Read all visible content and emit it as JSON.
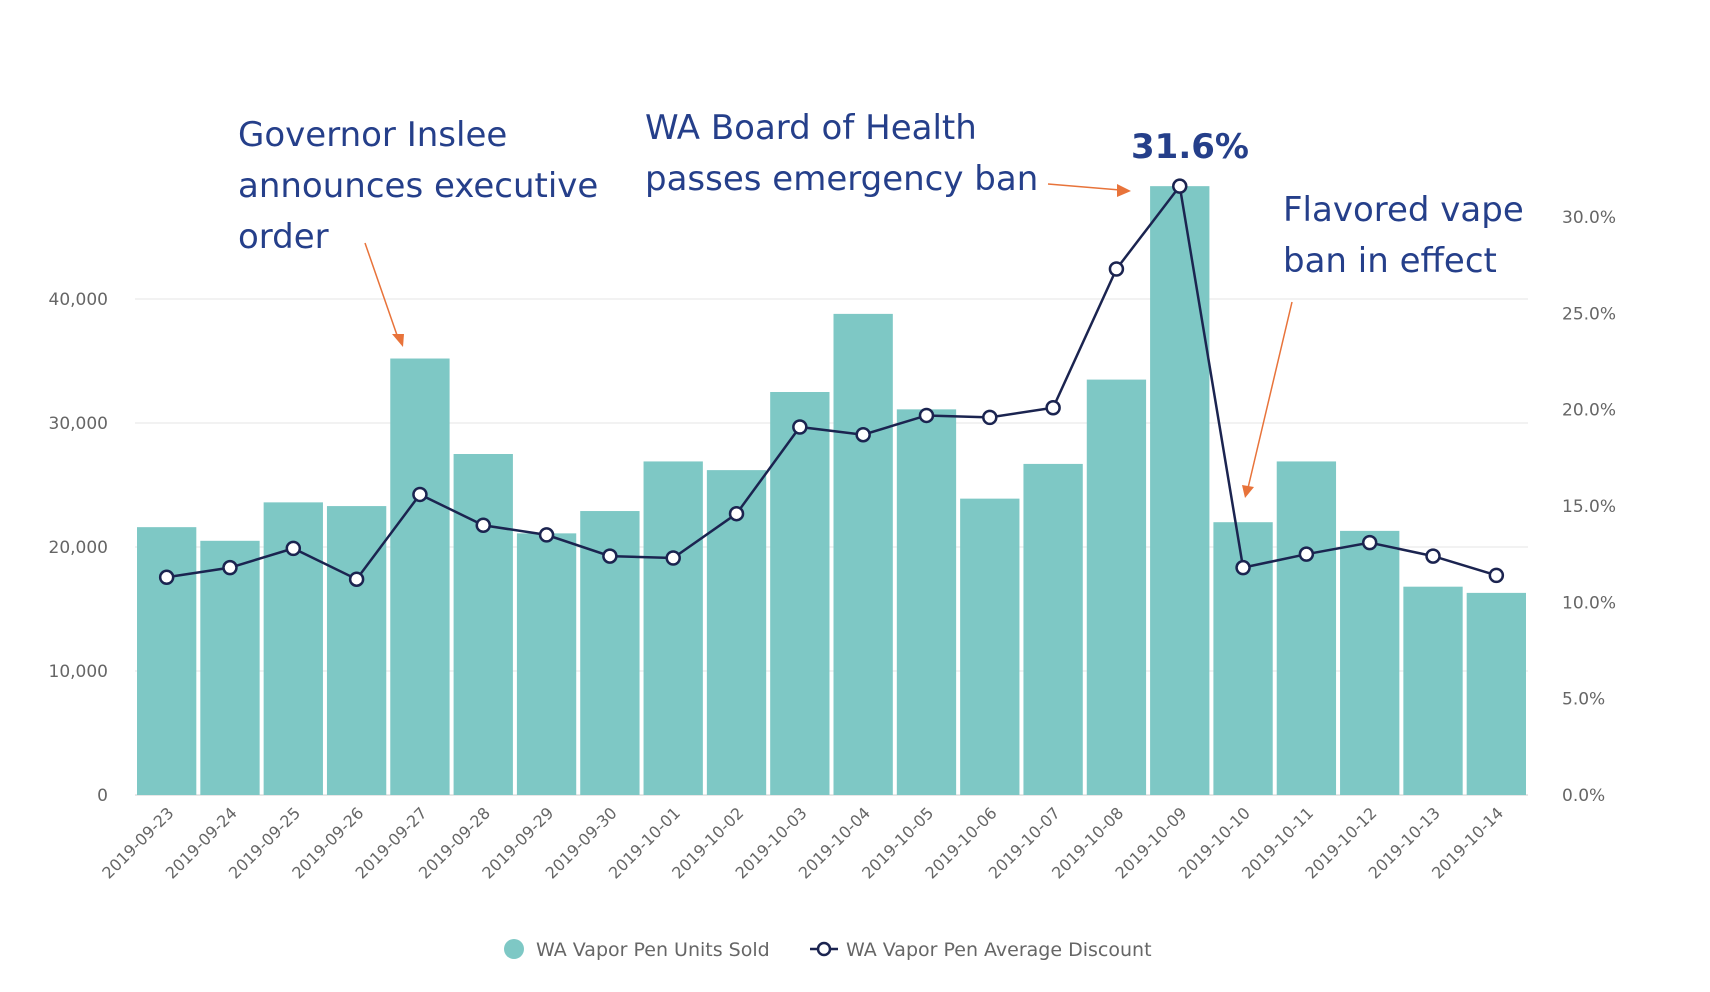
{
  "chart_data": {
    "type": "bar",
    "categories": [
      "2019-09-23",
      "2019-09-24",
      "2019-09-25",
      "2019-09-26",
      "2019-09-27",
      "2019-09-28",
      "2019-09-29",
      "2019-09-30",
      "2019-10-01",
      "2019-10-02",
      "2019-10-03",
      "2019-10-04",
      "2019-10-05",
      "2019-10-06",
      "2019-10-07",
      "2019-10-08",
      "2019-10-09",
      "2019-10-10",
      "2019-10-11",
      "2019-10-12",
      "2019-10-13",
      "2019-10-14"
    ],
    "series": [
      {
        "name": "WA Vapor Pen Units Sold",
        "type": "bar",
        "axis": "left",
        "values": [
          21600,
          20500,
          23600,
          23300,
          35200,
          27500,
          21100,
          22900,
          26900,
          26200,
          32500,
          38800,
          31100,
          23900,
          26700,
          33500,
          49100,
          22000,
          26900,
          21300,
          16800,
          16300
        ]
      },
      {
        "name": "WA Vapor Pen Average Discount",
        "type": "line",
        "axis": "right",
        "values": [
          11.3,
          11.8,
          12.8,
          11.2,
          15.6,
          14.0,
          13.5,
          12.4,
          12.3,
          14.6,
          19.1,
          18.7,
          19.7,
          19.6,
          20.1,
          27.3,
          31.6,
          11.8,
          12.5,
          13.1,
          12.4,
          11.4
        ]
      }
    ],
    "y_left": {
      "lim": [
        0,
        50000
      ],
      "ticks": [
        0,
        10000,
        20000,
        30000,
        40000
      ],
      "tick_labels": [
        "0",
        "10,000",
        "20,000",
        "30,000",
        "40,000"
      ]
    },
    "y_right": {
      "lim": [
        0,
        30
      ],
      "ticks": [
        0,
        5,
        10,
        15,
        20,
        25,
        30
      ],
      "tick_labels": [
        "0.0%",
        "5.0%",
        "10.0%",
        "15.0%",
        "20.0%",
        "25.0%",
        "30.0%"
      ]
    },
    "grid": true,
    "legend_position": "bottom-center",
    "colors": {
      "bar": "#7ec8c5",
      "line": "#1b2450",
      "annotation": "#253f8a",
      "arrow": "#e8733a",
      "grid": "#e6e6e6"
    },
    "annotations": [
      {
        "lines": [
          "Governor Inslee",
          "announces executive",
          "order"
        ],
        "target": "2019-09-27"
      },
      {
        "lines": [
          "WA Board of Health",
          "passes emergency ban"
        ],
        "target": "2019-10-09"
      },
      {
        "lines": [
          "Flavored vape",
          "ban in effect"
        ],
        "target": "2019-10-10"
      }
    ],
    "peak_label": "31.6%"
  }
}
